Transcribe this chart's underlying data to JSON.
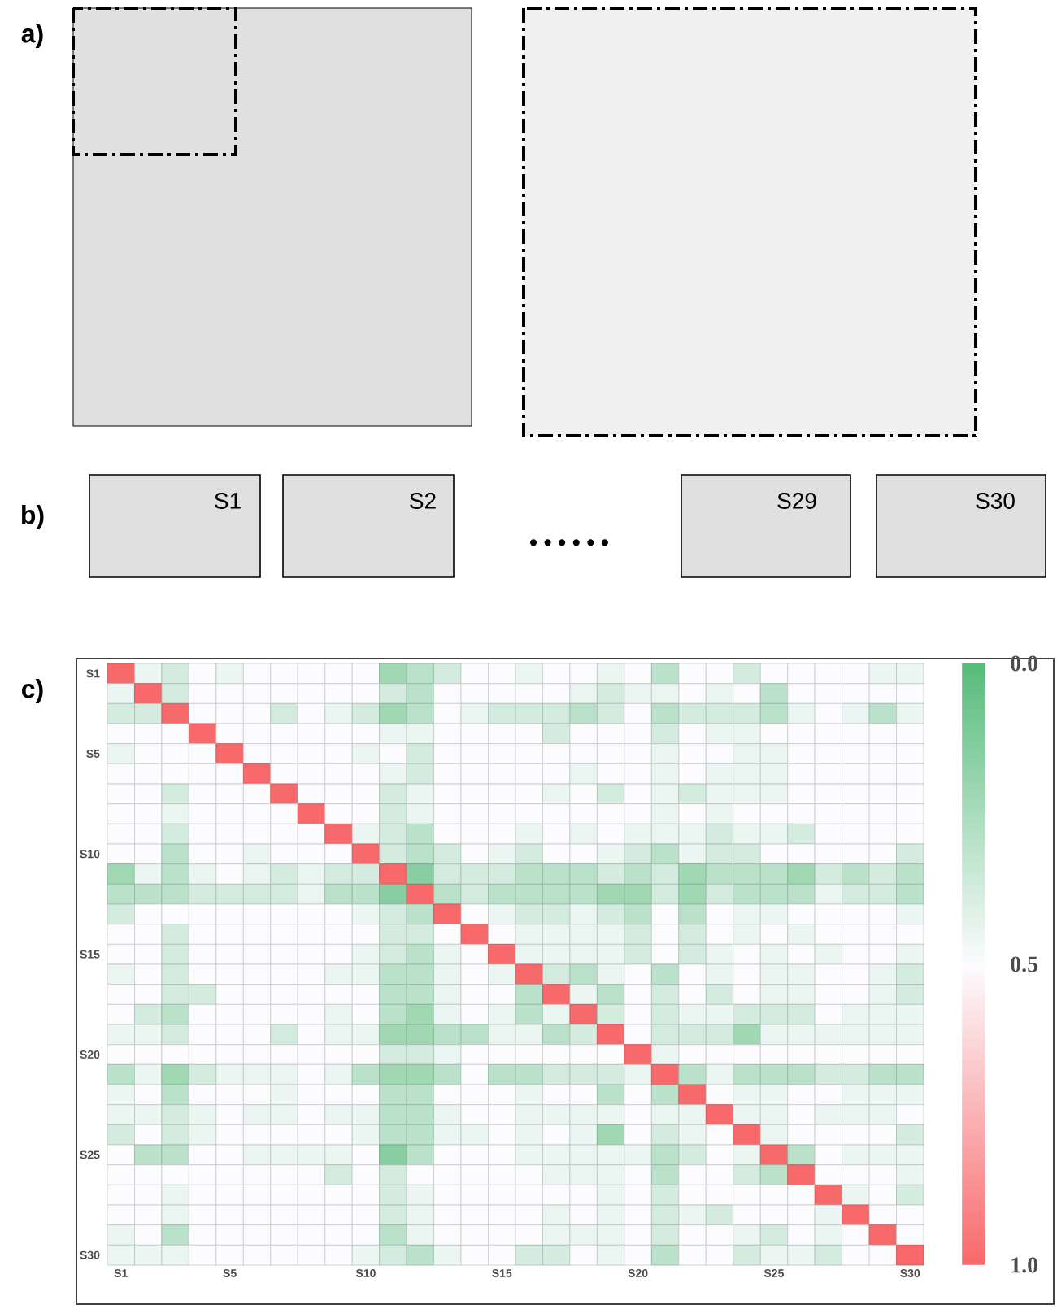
{
  "chart_data": {
    "type": "heatmap",
    "categories": [
      "S1",
      null,
      null,
      null,
      "S5",
      null,
      null,
      null,
      null,
      "S10",
      null,
      null,
      null,
      null,
      "S15",
      null,
      null,
      null,
      null,
      "S20",
      null,
      null,
      null,
      null,
      "S25",
      null,
      null,
      null,
      null,
      "S30"
    ],
    "y_categories": [
      "S1",
      null,
      null,
      null,
      "S5",
      null,
      null,
      null,
      null,
      "S10",
      null,
      null,
      null,
      null,
      "S15",
      null,
      null,
      null,
      null,
      "S20",
      null,
      null,
      null,
      null,
      "S25",
      null,
      null,
      null,
      null,
      "S30"
    ],
    "cells": [
      [
        1,
        0.45,
        0.38,
        0.5,
        0.45,
        0.5,
        0.5,
        0.5,
        0.5,
        0.5,
        0.22,
        0.3,
        0.38,
        0.5,
        0.5,
        0.45,
        0.5,
        0.5,
        0.45,
        0.5,
        0.3,
        0.5,
        0.5,
        0.38,
        0.5,
        0.5,
        0.5,
        0.5,
        0.45,
        0.45
      ],
      [
        0.45,
        1,
        0.38,
        0.5,
        0.5,
        0.5,
        0.5,
        0.5,
        0.5,
        0.5,
        0.38,
        0.3,
        0.5,
        0.5,
        0.5,
        0.5,
        0.5,
        0.45,
        0.38,
        0.45,
        0.45,
        0.5,
        0.45,
        0.5,
        0.3,
        0.5,
        0.5,
        0.5,
        0.5,
        0.5
      ],
      [
        0.38,
        0.38,
        1,
        0.5,
        0.5,
        0.5,
        0.38,
        0.5,
        0.45,
        0.38,
        0.22,
        0.3,
        0.5,
        0.45,
        0.38,
        0.38,
        0.38,
        0.3,
        0.38,
        0.5,
        0.3,
        0.38,
        0.38,
        0.38,
        0.3,
        0.45,
        0.5,
        0.45,
        0.3,
        0.45
      ],
      [
        0.5,
        0.5,
        0.5,
        1,
        0.5,
        0.5,
        0.5,
        0.5,
        0.5,
        0.5,
        0.45,
        0.45,
        0.5,
        0.5,
        0.5,
        0.5,
        0.38,
        0.5,
        0.5,
        0.5,
        0.38,
        0.5,
        0.45,
        0.45,
        0.5,
        0.5,
        0.5,
        0.5,
        0.5,
        0.5
      ],
      [
        0.45,
        0.5,
        0.5,
        0.5,
        1,
        0.5,
        0.5,
        0.5,
        0.5,
        0.45,
        0.5,
        0.38,
        0.5,
        0.5,
        0.5,
        0.5,
        0.5,
        0.5,
        0.5,
        0.5,
        0.45,
        0.5,
        0.5,
        0.45,
        0.45,
        0.5,
        0.5,
        0.5,
        0.5,
        0.5
      ],
      [
        0.5,
        0.5,
        0.5,
        0.5,
        0.5,
        1,
        0.5,
        0.5,
        0.5,
        0.5,
        0.45,
        0.38,
        0.5,
        0.5,
        0.5,
        0.5,
        0.5,
        0.45,
        0.5,
        0.5,
        0.45,
        0.5,
        0.45,
        0.45,
        0.45,
        0.5,
        0.5,
        0.5,
        0.5,
        0.5
      ],
      [
        0.5,
        0.5,
        0.38,
        0.5,
        0.5,
        0.5,
        1,
        0.5,
        0.5,
        0.5,
        0.38,
        0.45,
        0.5,
        0.5,
        0.5,
        0.5,
        0.45,
        0.5,
        0.38,
        0.5,
        0.45,
        0.38,
        0.45,
        0.45,
        0.45,
        0.5,
        0.5,
        0.5,
        0.5,
        0.5
      ],
      [
        0.5,
        0.5,
        0.45,
        0.5,
        0.5,
        0.5,
        0.5,
        1,
        0.5,
        0.5,
        0.38,
        0.45,
        0.5,
        0.5,
        0.5,
        0.5,
        0.5,
        0.5,
        0.5,
        0.5,
        0.45,
        0.5,
        0.45,
        0.5,
        0.5,
        0.5,
        0.5,
        0.5,
        0.5,
        0.5
      ],
      [
        0.5,
        0.5,
        0.38,
        0.5,
        0.5,
        0.5,
        0.5,
        0.5,
        1,
        0.45,
        0.38,
        0.3,
        0.5,
        0.5,
        0.5,
        0.45,
        0.5,
        0.45,
        0.5,
        0.45,
        0.45,
        0.45,
        0.38,
        0.45,
        0.45,
        0.38,
        0.5,
        0.5,
        0.5,
        0.5
      ],
      [
        0.5,
        0.5,
        0.3,
        0.5,
        0.5,
        0.45,
        0.5,
        0.5,
        0.5,
        1,
        0.38,
        0.3,
        0.38,
        0.5,
        0.45,
        0.38,
        0.5,
        0.5,
        0.45,
        0.38,
        0.3,
        0.45,
        0.38,
        0.38,
        0.5,
        0.5,
        0.5,
        0.5,
        0.5,
        0.38
      ],
      [
        0.22,
        0.45,
        0.3,
        0.45,
        0.5,
        0.45,
        0.38,
        0.45,
        0.38,
        0.38,
        1,
        0.15,
        0.38,
        0.38,
        0.38,
        0.3,
        0.3,
        0.3,
        0.38,
        0.3,
        0.38,
        0.22,
        0.3,
        0.3,
        0.3,
        0.22,
        0.38,
        0.3,
        0.38,
        0.3
      ],
      [
        0.3,
        0.3,
        0.3,
        0.38,
        0.38,
        0.38,
        0.38,
        0.45,
        0.3,
        0.3,
        0.15,
        1,
        0.3,
        0.38,
        0.3,
        0.3,
        0.3,
        0.3,
        0.22,
        0.22,
        0.38,
        0.22,
        0.38,
        0.3,
        0.3,
        0.3,
        0.45,
        0.38,
        0.38,
        0.3
      ],
      [
        0.38,
        0.5,
        0.5,
        0.5,
        0.5,
        0.5,
        0.5,
        0.5,
        0.5,
        0.45,
        0.38,
        0.3,
        1,
        0.5,
        0.45,
        0.38,
        0.38,
        0.45,
        0.38,
        0.3,
        0.5,
        0.3,
        0.5,
        0.45,
        0.45,
        0.5,
        0.5,
        0.5,
        0.5,
        0.45
      ],
      [
        0.5,
        0.5,
        0.38,
        0.5,
        0.5,
        0.5,
        0.5,
        0.5,
        0.5,
        0.5,
        0.38,
        0.38,
        0.5,
        1,
        0.5,
        0.45,
        0.45,
        0.45,
        0.45,
        0.38,
        0.5,
        0.38,
        0.5,
        0.45,
        0.5,
        0.45,
        0.5,
        0.5,
        0.5,
        0.5
      ],
      [
        0.5,
        0.5,
        0.38,
        0.5,
        0.5,
        0.5,
        0.5,
        0.5,
        0.5,
        0.45,
        0.38,
        0.3,
        0.45,
        0.5,
        1,
        0.45,
        0.45,
        0.45,
        0.45,
        0.38,
        0.5,
        0.38,
        0.45,
        0.5,
        0.45,
        0.5,
        0.45,
        0.5,
        0.5,
        0.45
      ],
      [
        0.45,
        0.5,
        0.38,
        0.5,
        0.5,
        0.5,
        0.5,
        0.5,
        0.45,
        0.45,
        0.3,
        0.3,
        0.45,
        0.5,
        0.45,
        1,
        0.38,
        0.3,
        0.45,
        0.5,
        0.3,
        0.5,
        0.45,
        0.5,
        0.45,
        0.45,
        0.5,
        0.5,
        0.45,
        0.38
      ],
      [
        0.5,
        0.5,
        0.38,
        0.38,
        0.5,
        0.5,
        0.5,
        0.5,
        0.5,
        0.5,
        0.3,
        0.3,
        0.45,
        0.5,
        0.5,
        0.3,
        1,
        0.45,
        0.3,
        0.5,
        0.38,
        0.5,
        0.38,
        0.5,
        0.45,
        0.45,
        0.5,
        0.5,
        0.45,
        0.38
      ],
      [
        0.5,
        0.38,
        0.3,
        0.5,
        0.5,
        0.5,
        0.5,
        0.5,
        0.45,
        0.5,
        0.3,
        0.22,
        0.45,
        0.5,
        0.45,
        0.3,
        0.45,
        1,
        0.38,
        0.5,
        0.38,
        0.45,
        0.45,
        0.38,
        0.38,
        0.38,
        0.5,
        0.45,
        0.45,
        0.45
      ],
      [
        0.45,
        0.45,
        0.38,
        0.5,
        0.5,
        0.5,
        0.38,
        0.5,
        0.45,
        0.45,
        0.22,
        0.22,
        0.3,
        0.3,
        0.45,
        0.45,
        0.3,
        0.38,
        1,
        0.5,
        0.38,
        0.38,
        0.38,
        0.22,
        0.45,
        0.45,
        0.45,
        0.45,
        0.45,
        0.45
      ],
      [
        0.5,
        0.5,
        0.5,
        0.5,
        0.5,
        0.5,
        0.5,
        0.5,
        0.5,
        0.5,
        0.38,
        0.38,
        0.45,
        0.5,
        0.5,
        0.5,
        0.5,
        0.5,
        0.5,
        1,
        0.45,
        0.5,
        0.5,
        0.5,
        0.5,
        0.5,
        0.5,
        0.5,
        0.5,
        0.5
      ],
      [
        0.3,
        0.45,
        0.22,
        0.38,
        0.45,
        0.45,
        0.45,
        0.5,
        0.45,
        0.3,
        0.22,
        0.22,
        0.3,
        0.5,
        0.3,
        0.3,
        0.38,
        0.38,
        0.38,
        0.45,
        1,
        0.3,
        0.45,
        0.3,
        0.3,
        0.3,
        0.38,
        0.38,
        0.3,
        0.3
      ],
      [
        0.45,
        0.5,
        0.3,
        0.5,
        0.5,
        0.5,
        0.45,
        0.5,
        0.5,
        0.5,
        0.3,
        0.3,
        0.5,
        0.5,
        0.5,
        0.45,
        0.5,
        0.5,
        0.3,
        0.5,
        0.3,
        1,
        0.5,
        0.45,
        0.45,
        0.5,
        0.5,
        0.45,
        0.45,
        0.45
      ],
      [
        0.45,
        0.45,
        0.38,
        0.45,
        0.5,
        0.45,
        0.45,
        0.5,
        0.45,
        0.45,
        0.3,
        0.3,
        0.45,
        0.5,
        0.5,
        0.45,
        0.45,
        0.45,
        0.45,
        0.5,
        0.45,
        0.45,
        1,
        0.45,
        0.45,
        0.5,
        0.45,
        0.45,
        0.45,
        0.5
      ],
      [
        0.38,
        0.5,
        0.38,
        0.45,
        0.5,
        0.5,
        0.5,
        0.5,
        0.5,
        0.45,
        0.3,
        0.3,
        0.45,
        0.45,
        0.5,
        0.45,
        0.5,
        0.45,
        0.22,
        0.5,
        0.38,
        0.45,
        0.5,
        1,
        0.45,
        0.5,
        0.5,
        0.5,
        0.5,
        0.38
      ],
      [
        0.5,
        0.3,
        0.3,
        0.5,
        0.5,
        0.45,
        0.45,
        0.45,
        0.45,
        0.5,
        0.15,
        0.3,
        0.5,
        0.5,
        0.5,
        0.45,
        0.45,
        0.45,
        0.45,
        0.45,
        0.3,
        0.38,
        0.5,
        0.45,
        1,
        0.3,
        0.5,
        0.45,
        0.45,
        0.45
      ],
      [
        0.5,
        0.5,
        0.5,
        0.5,
        0.5,
        0.5,
        0.5,
        0.5,
        0.38,
        0.5,
        0.38,
        0.5,
        0.5,
        0.5,
        0.5,
        0.5,
        0.45,
        0.45,
        0.45,
        0.5,
        0.3,
        0.5,
        0.5,
        0.38,
        0.3,
        1,
        0.5,
        0.5,
        0.5,
        0.45
      ],
      [
        0.5,
        0.5,
        0.45,
        0.5,
        0.5,
        0.5,
        0.5,
        0.5,
        0.5,
        0.5,
        0.38,
        0.45,
        0.5,
        0.5,
        0.5,
        0.5,
        0.5,
        0.5,
        0.45,
        0.5,
        0.38,
        0.5,
        0.5,
        0.5,
        0.5,
        0.5,
        1,
        0.45,
        0.5,
        0.38
      ],
      [
        0.5,
        0.5,
        0.45,
        0.5,
        0.5,
        0.5,
        0.5,
        0.5,
        0.5,
        0.5,
        0.38,
        0.45,
        0.5,
        0.5,
        0.5,
        0.5,
        0.45,
        0.5,
        0.45,
        0.5,
        0.38,
        0.45,
        0.38,
        0.5,
        0.5,
        0.5,
        0.45,
        1,
        0.5,
        0.5
      ],
      [
        0.45,
        0.5,
        0.3,
        0.5,
        0.5,
        0.5,
        0.5,
        0.5,
        0.5,
        0.5,
        0.3,
        0.45,
        0.5,
        0.5,
        0.5,
        0.5,
        0.45,
        0.45,
        0.45,
        0.5,
        0.38,
        0.5,
        0.5,
        0.45,
        0.38,
        0.5,
        0.45,
        0.5,
        1,
        0.5
      ],
      [
        0.45,
        0.45,
        0.45,
        0.5,
        0.5,
        0.5,
        0.5,
        0.5,
        0.5,
        0.45,
        0.38,
        0.3,
        0.45,
        0.5,
        0.5,
        0.38,
        0.38,
        0.5,
        0.45,
        0.5,
        0.3,
        0.5,
        0.5,
        0.38,
        0.45,
        0.45,
        0.38,
        0.5,
        0.5,
        1
      ]
    ],
    "clim": [
      0,
      1
    ],
    "cticks": [
      {
        "value": 0,
        "label": "0.0"
      },
      0.5,
      {
        "value": 1,
        "label": "1.0"
      }
    ],
    "annotations": [
      "a)",
      "b)",
      "c)",
      "S1",
      "S2",
      "S29",
      "S30",
      "• • • • • •"
    ]
  }
}
